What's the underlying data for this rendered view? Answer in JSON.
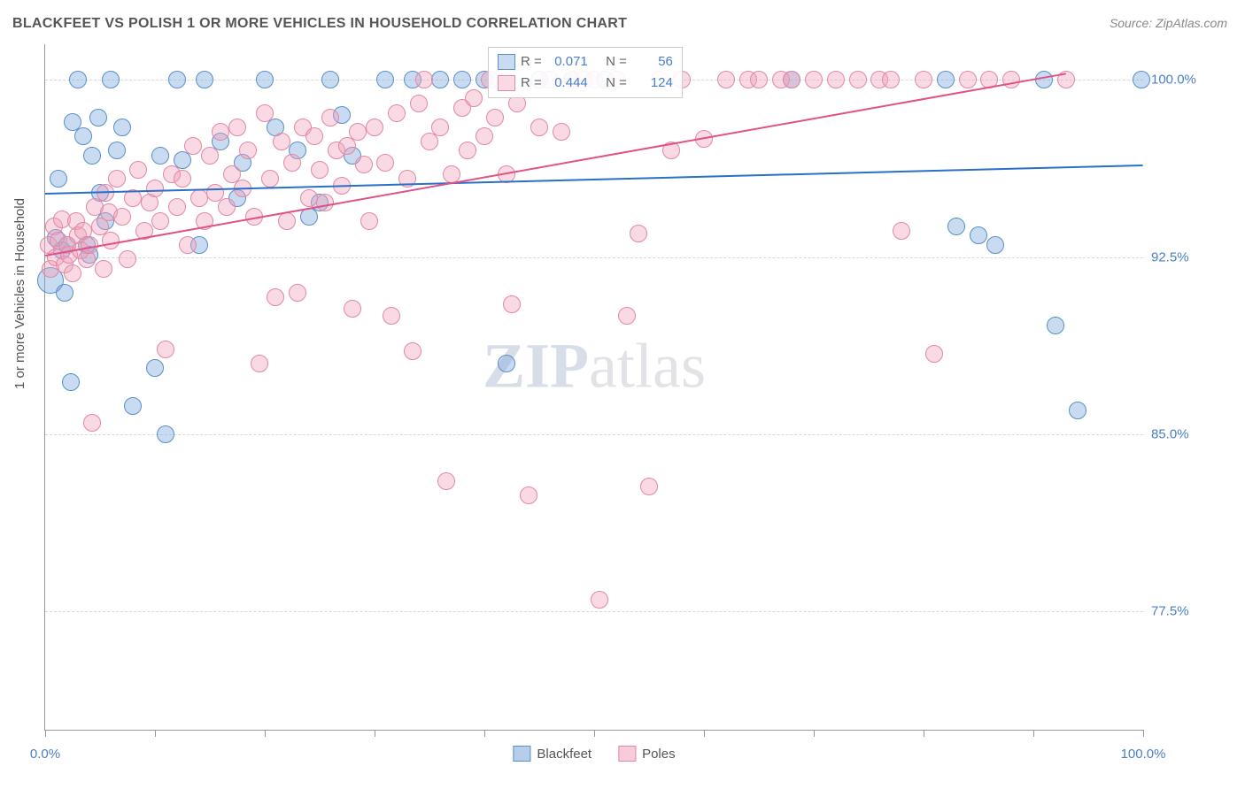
{
  "title": "BLACKFEET VS POLISH 1 OR MORE VEHICLES IN HOUSEHOLD CORRELATION CHART",
  "source": "Source: ZipAtlas.com",
  "yaxis_title": "1 or more Vehicles in Household",
  "watermark_parts": {
    "z": "Z",
    "ip": "IP",
    "atlas": "atlas"
  },
  "chart": {
    "type": "scatter",
    "background_color": "#ffffff",
    "grid_color": "#d8d8d8",
    "xlim": [
      0,
      100
    ],
    "ylim": [
      72.5,
      101.5
    ],
    "xtick_positions": [
      0,
      10,
      20,
      30,
      40,
      50,
      60,
      70,
      80,
      90,
      100
    ],
    "xtick_labels": {
      "0": "0.0%",
      "100": "100.0%"
    },
    "ytick_positions": [
      77.5,
      85.0,
      92.5,
      100.0
    ],
    "ytick_labels": [
      "77.5%",
      "85.0%",
      "92.5%",
      "100.0%"
    ],
    "label_color": "#4a7fc8",
    "label_fontsize": 15,
    "title_fontsize": 16,
    "series": [
      {
        "name": "Blackfeet",
        "fill_color": "rgba(120,165,220,0.40)",
        "stroke_color": "#5a8fc8",
        "marker_radius": 9,
        "trend": {
          "color": "#2a6fc8",
          "width": 2,
          "x1": 0,
          "y1": 95.2,
          "x2": 100,
          "y2": 96.4
        },
        "stats": {
          "R": "0.071",
          "N": "56"
        },
        "points": [
          [
            0.5,
            91.5,
            14
          ],
          [
            1.0,
            93.3
          ],
          [
            1.2,
            95.8
          ],
          [
            1.5,
            92.8
          ],
          [
            1.8,
            91.0
          ],
          [
            2.0,
            93.0
          ],
          [
            2.3,
            87.2
          ],
          [
            2.5,
            98.2
          ],
          [
            3.0,
            100.0
          ],
          [
            3.5,
            97.6
          ],
          [
            3.8,
            93.0
          ],
          [
            4.0,
            92.6
          ],
          [
            4.3,
            96.8
          ],
          [
            4.8,
            98.4
          ],
          [
            5.0,
            95.2
          ],
          [
            5.5,
            94.0
          ],
          [
            6.0,
            100.0
          ],
          [
            6.5,
            97.0
          ],
          [
            7.0,
            98.0
          ],
          [
            8.0,
            86.2
          ],
          [
            10.0,
            87.8
          ],
          [
            10.5,
            96.8
          ],
          [
            11.0,
            85.0
          ],
          [
            12.0,
            100.0
          ],
          [
            12.5,
            96.6
          ],
          [
            14.0,
            93.0
          ],
          [
            14.5,
            100.0
          ],
          [
            16.0,
            97.4
          ],
          [
            17.5,
            95.0
          ],
          [
            18.0,
            96.5
          ],
          [
            20.0,
            100.0
          ],
          [
            21.0,
            98.0
          ],
          [
            23.0,
            97.0
          ],
          [
            24.0,
            94.2
          ],
          [
            25.0,
            94.8
          ],
          [
            26.0,
            100.0
          ],
          [
            27.0,
            98.5
          ],
          [
            28.0,
            96.8
          ],
          [
            31.0,
            100.0
          ],
          [
            33.5,
            100.0
          ],
          [
            36.0,
            100.0
          ],
          [
            38.0,
            100.0
          ],
          [
            40.0,
            100.0
          ],
          [
            42.0,
            88.0
          ],
          [
            45.0,
            100.0
          ],
          [
            48.0,
            100.0
          ],
          [
            51.0,
            100.0
          ],
          [
            68.0,
            100.0
          ],
          [
            82.0,
            100.0
          ],
          [
            83.0,
            93.8
          ],
          [
            85.0,
            93.4
          ],
          [
            86.5,
            93.0
          ],
          [
            91.0,
            100.0
          ],
          [
            92.0,
            89.6
          ],
          [
            94.0,
            86.0
          ],
          [
            99.8,
            100.0
          ]
        ]
      },
      {
        "name": "Poles",
        "fill_color": "rgba(240,160,185,0.40)",
        "stroke_color": "#e388a5",
        "marker_radius": 9,
        "trend": {
          "color": "#e05285",
          "width": 2,
          "x1": 0,
          "y1": 92.6,
          "x2": 93,
          "y2": 100.3
        },
        "stats": {
          "R": "0.444",
          "N": "124"
        },
        "points": [
          [
            0.3,
            93.0
          ],
          [
            0.5,
            92.0
          ],
          [
            0.8,
            93.8
          ],
          [
            1.0,
            92.5
          ],
          [
            1.2,
            93.2
          ],
          [
            1.5,
            94.1
          ],
          [
            1.8,
            92.2
          ],
          [
            2.0,
            93.0
          ],
          [
            2.2,
            92.6
          ],
          [
            2.5,
            91.8
          ],
          [
            2.8,
            94.0
          ],
          [
            3.0,
            93.4
          ],
          [
            3.2,
            92.8
          ],
          [
            3.5,
            93.6
          ],
          [
            3.8,
            92.4
          ],
          [
            4.0,
            93.0
          ],
          [
            4.3,
            85.5
          ],
          [
            4.5,
            94.6
          ],
          [
            5.0,
            93.8
          ],
          [
            5.3,
            92.0
          ],
          [
            5.5,
            95.2
          ],
          [
            5.8,
            94.4
          ],
          [
            6.0,
            93.2
          ],
          [
            6.5,
            95.8
          ],
          [
            7.0,
            94.2
          ],
          [
            7.5,
            92.4
          ],
          [
            8.0,
            95.0
          ],
          [
            8.5,
            96.2
          ],
          [
            9.0,
            93.6
          ],
          [
            9.5,
            94.8
          ],
          [
            10.0,
            95.4
          ],
          [
            10.5,
            94.0
          ],
          [
            11.0,
            88.6
          ],
          [
            11.5,
            96.0
          ],
          [
            12.0,
            94.6
          ],
          [
            12.5,
            95.8
          ],
          [
            13.0,
            93.0
          ],
          [
            13.5,
            97.2
          ],
          [
            14.0,
            95.0
          ],
          [
            14.5,
            94.0
          ],
          [
            15.0,
            96.8
          ],
          [
            15.5,
            95.2
          ],
          [
            16.0,
            97.8
          ],
          [
            16.5,
            94.6
          ],
          [
            17.0,
            96.0
          ],
          [
            17.5,
            98.0
          ],
          [
            18.0,
            95.4
          ],
          [
            18.5,
            97.0
          ],
          [
            19.0,
            94.2
          ],
          [
            19.5,
            88.0
          ],
          [
            20.0,
            98.6
          ],
          [
            20.5,
            95.8
          ],
          [
            21.0,
            90.8
          ],
          [
            21.5,
            97.4
          ],
          [
            22.0,
            94.0
          ],
          [
            22.5,
            96.5
          ],
          [
            23.0,
            91.0
          ],
          [
            23.5,
            98.0
          ],
          [
            24.0,
            95.0
          ],
          [
            24.5,
            97.6
          ],
          [
            25.0,
            96.2
          ],
          [
            25.5,
            94.8
          ],
          [
            26.0,
            98.4
          ],
          [
            26.5,
            97.0
          ],
          [
            27.0,
            95.5
          ],
          [
            27.5,
            97.2
          ],
          [
            28.0,
            90.3
          ],
          [
            28.5,
            97.8
          ],
          [
            29.0,
            96.4
          ],
          [
            29.5,
            94.0
          ],
          [
            30.0,
            98.0
          ],
          [
            31.0,
            96.5
          ],
          [
            31.5,
            90.0
          ],
          [
            32.0,
            98.6
          ],
          [
            33.0,
            95.8
          ],
          [
            33.5,
            88.5
          ],
          [
            34.0,
            99.0
          ],
          [
            34.5,
            100.0
          ],
          [
            35.0,
            97.4
          ],
          [
            36.0,
            98.0
          ],
          [
            36.5,
            83.0
          ],
          [
            37.0,
            96.0
          ],
          [
            38.0,
            98.8
          ],
          [
            38.5,
            97.0
          ],
          [
            39.0,
            99.2
          ],
          [
            40.0,
            97.6
          ],
          [
            40.5,
            100.0
          ],
          [
            41.0,
            98.4
          ],
          [
            42.0,
            96.0
          ],
          [
            42.5,
            90.5
          ],
          [
            43.0,
            99.0
          ],
          [
            44.0,
            82.4
          ],
          [
            45.0,
            98.0
          ],
          [
            46.0,
            100.0
          ],
          [
            47.0,
            97.8
          ],
          [
            48.0,
            100.0
          ],
          [
            49.0,
            100.0
          ],
          [
            50.0,
            100.0
          ],
          [
            50.5,
            78.0
          ],
          [
            52.0,
            100.0
          ],
          [
            53.0,
            90.0
          ],
          [
            54.0,
            93.5
          ],
          [
            55.0,
            82.8
          ],
          [
            56.0,
            100.0
          ],
          [
            57.0,
            97.0
          ],
          [
            58.0,
            100.0
          ],
          [
            60.0,
            97.5
          ],
          [
            62.0,
            100.0
          ],
          [
            64.0,
            100.0
          ],
          [
            65.0,
            100.0
          ],
          [
            67.0,
            100.0
          ],
          [
            68.0,
            100.0
          ],
          [
            70.0,
            100.0
          ],
          [
            72.0,
            100.0
          ],
          [
            74.0,
            100.0
          ],
          [
            76.0,
            100.0
          ],
          [
            77.0,
            100.0
          ],
          [
            78.0,
            93.6
          ],
          [
            80.0,
            100.0
          ],
          [
            81.0,
            88.4
          ],
          [
            84.0,
            100.0
          ],
          [
            86.0,
            100.0
          ],
          [
            88.0,
            100.0
          ],
          [
            93.0,
            100.0
          ]
        ]
      }
    ],
    "legend_bottom": [
      {
        "label": "Blackfeet",
        "fill": "rgba(120,165,220,0.55)",
        "stroke": "#5a8fc8"
      },
      {
        "label": "Poles",
        "fill": "rgba(240,160,185,0.55)",
        "stroke": "#e388a5"
      }
    ]
  }
}
